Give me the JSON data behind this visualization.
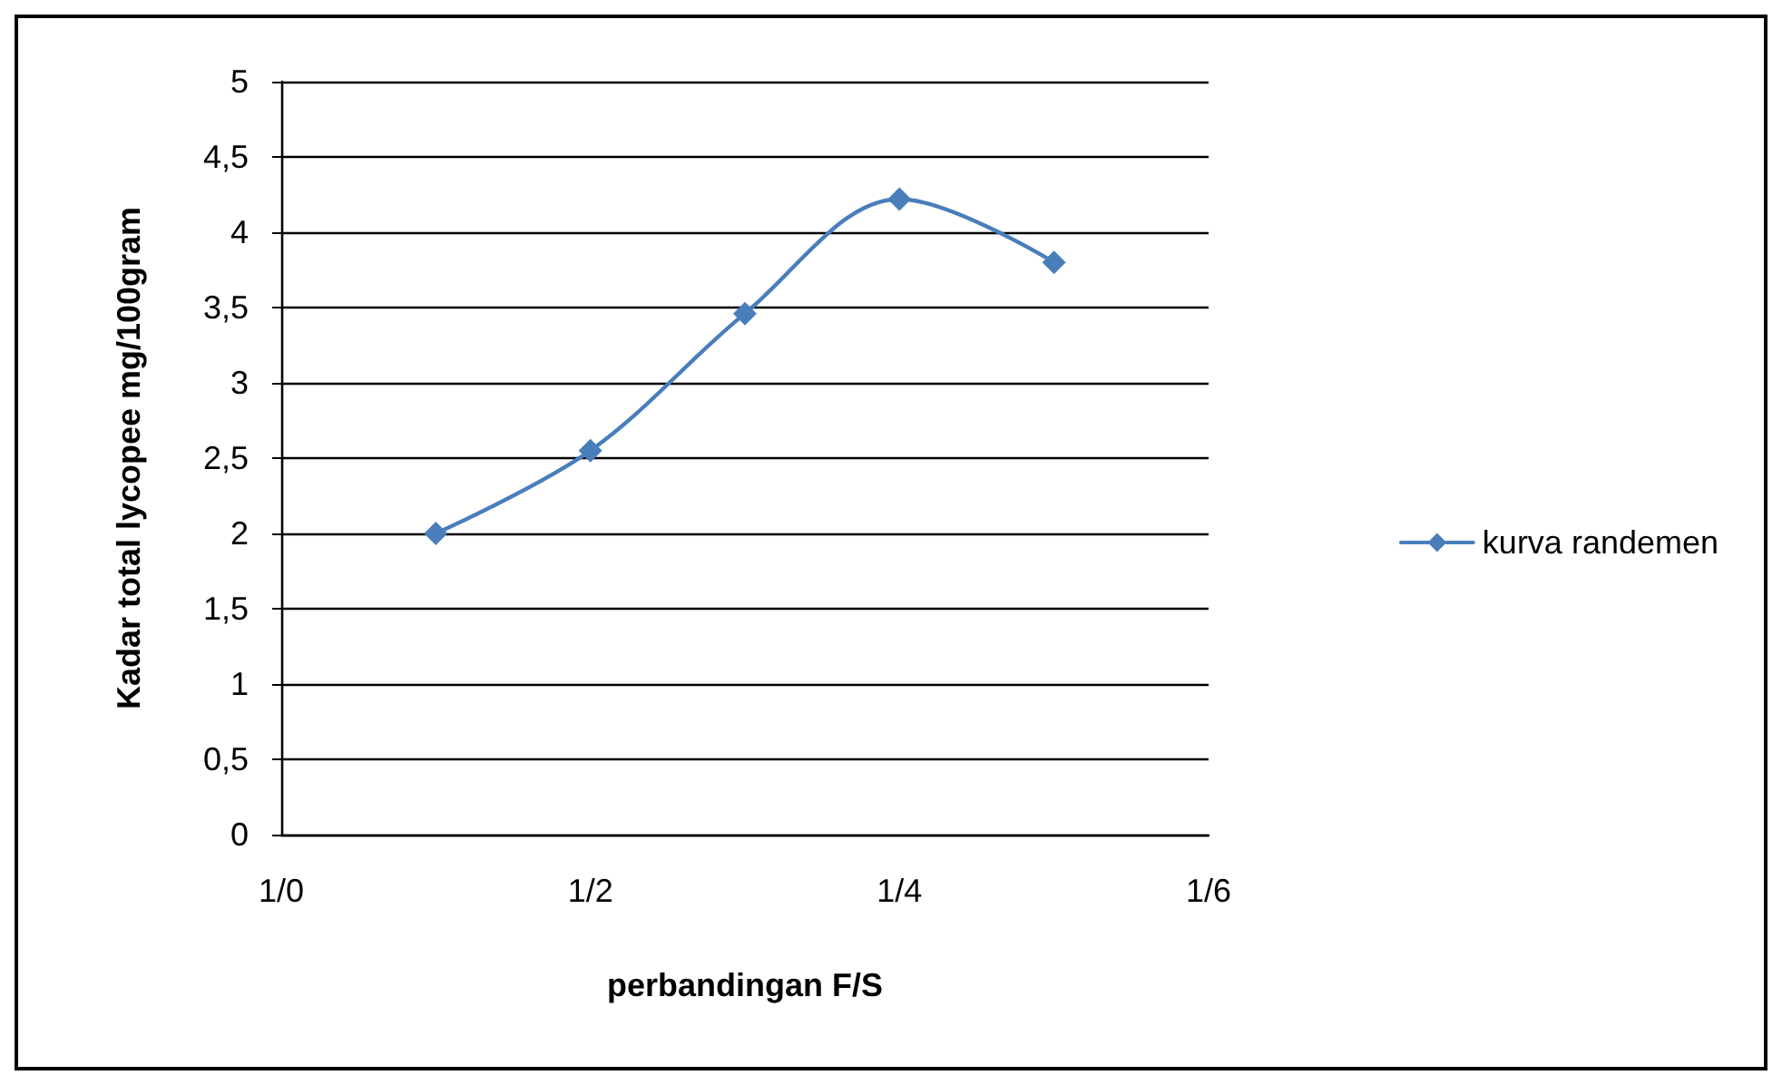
{
  "chart_data": {
    "type": "line",
    "xlabel": "perbandingan F/S",
    "ylabel": "Kadar total lycopee mg/100gram",
    "categories": [
      "1/0",
      null,
      "1/2",
      null,
      "1/4",
      null,
      "1/6"
    ],
    "series": [
      {
        "name": "kurva randemen",
        "color": "#4a7ebb",
        "values": [
          null,
          2.0,
          2.55,
          3.46,
          4.22,
          3.8,
          null
        ]
      }
    ],
    "ylim": [
      0,
      5
    ],
    "yticks": [
      {
        "value": 0,
        "label": "0"
      },
      {
        "value": 0.5,
        "label": "0,5"
      },
      {
        "value": 1,
        "label": "1"
      },
      {
        "value": 1.5,
        "label": "1,5"
      },
      {
        "value": 2,
        "label": "2"
      },
      {
        "value": 2.5,
        "label": "2,5"
      },
      {
        "value": 3,
        "label": "3"
      },
      {
        "value": 3.5,
        "label": "3,5"
      },
      {
        "value": 4,
        "label": "4"
      },
      {
        "value": 4.5,
        "label": "4,5"
      },
      {
        "value": 5,
        "label": "5"
      }
    ],
    "grid": "y",
    "legend": "right",
    "marker": "diamond",
    "line_style": "solid"
  }
}
